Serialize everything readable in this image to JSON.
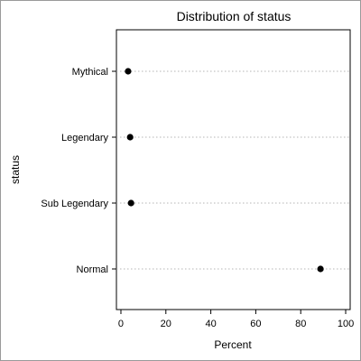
{
  "chart_data": {
    "type": "dot",
    "title": "Distribution of status",
    "xlabel": "Percent",
    "ylabel": "status",
    "xlim": [
      -2,
      102
    ],
    "x_ticks": [
      0,
      20,
      40,
      60,
      80,
      100
    ],
    "categories": [
      "Mythical",
      "Legendary",
      "Sub Legendary",
      "Normal"
    ],
    "values": [
      3.2,
      4.1,
      4.5,
      88.8
    ],
    "grid": "horizontal dotted reference lines",
    "legend": "none",
    "marker_color": "#000000",
    "grid_color": "#b4b4b4"
  }
}
